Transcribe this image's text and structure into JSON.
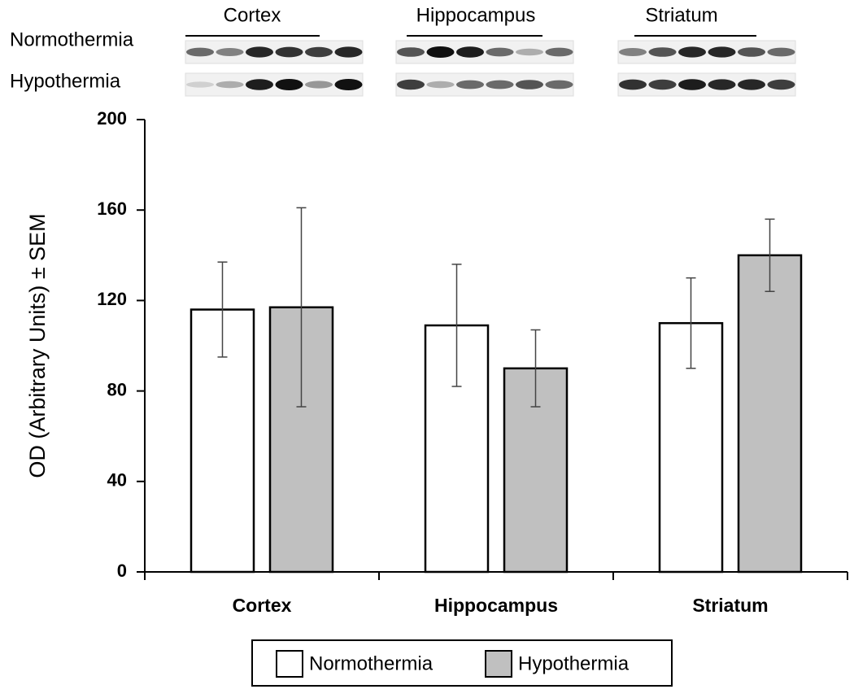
{
  "blot_panel": {
    "regions": [
      "Cortex",
      "Hippocampus",
      "Striatum"
    ],
    "conditions": [
      "Normothermia",
      "Hypothermia"
    ]
  },
  "chart_data": {
    "type": "bar",
    "y_label": "OD (Arbitrary Units) ± SEM",
    "categories": [
      "Cortex",
      "Hippocampus",
      "Striatum"
    ],
    "series": [
      {
        "name": "Normothermia",
        "color": "#ffffff",
        "values": [
          116,
          109,
          110
        ],
        "errors": [
          21,
          27,
          20
        ]
      },
      {
        "name": "Hypothermia",
        "color": "#c0c0c0",
        "values": [
          117,
          90,
          140
        ],
        "errors": [
          44,
          17,
          16
        ]
      }
    ],
    "ylim": [
      0,
      200
    ],
    "yticks": [
      0,
      40,
      80,
      120,
      160,
      200
    ],
    "grid": false
  }
}
